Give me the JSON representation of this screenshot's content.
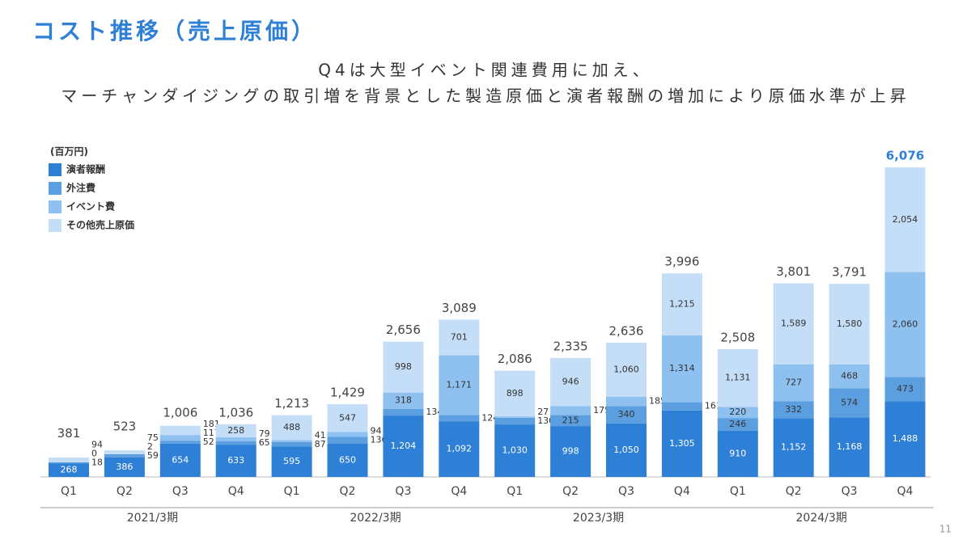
{
  "header": {
    "title": "コスト推移（売上原価）",
    "subtitle_lines": [
      "Q4は大型イベント関連費用に加え、",
      "マーチャンダイジングの取引増を背景とした製造原価と演者報酬の増加により原価水準が上昇"
    ]
  },
  "chart_data": {
    "type": "stacked-bar",
    "unit_label": "(百万円)",
    "categories": [
      "Q1",
      "Q2",
      "Q3",
      "Q4",
      "Q1",
      "Q2",
      "Q3",
      "Q4",
      "Q1",
      "Q2",
      "Q3",
      "Q4",
      "Q1",
      "Q2",
      "Q3",
      "Q4"
    ],
    "groups": [
      "2021/3期",
      "2022/3期",
      "2023/3期",
      "2024/3期"
    ],
    "series": [
      {
        "name": "演者報酬",
        "color": "#2e7fd6",
        "values": [
          268,
          386,
          654,
          633,
          595,
          650,
          1204,
          1092,
          1030,
          998,
          1050,
          1305,
          910,
          1152,
          1168,
          1488
        ],
        "value_labels": [
          "268",
          "386",
          "654",
          "633",
          "595",
          "650",
          "1,204",
          "1,092",
          "1,030",
          "998",
          "1,050",
          "1,305",
          "910",
          "1,152",
          "1,168",
          "1,488"
        ]
      },
      {
        "name": "外注費",
        "color": "#5b9fe0",
        "values": [
          18,
          59,
          52,
          65,
          87,
          136,
          134,
          124,
          130,
          215,
          340,
          161,
          246,
          332,
          574,
          473
        ]
      },
      {
        "name": "イベント費",
        "color": "#8fc1f0",
        "values": [
          0,
          2,
          117,
          79,
          41,
          94,
          318,
          1171,
          27,
          175,
          185,
          1314,
          220,
          727,
          468,
          2060
        ],
        "value_labels": [
          "0",
          "2",
          "117",
          "79",
          "41",
          "94",
          "318",
          "1,171",
          "27",
          "175",
          "185",
          "1,314",
          "220",
          "727",
          "468",
          "2,060"
        ]
      },
      {
        "name": "その他売上原価",
        "color": "#c5def7",
        "values": [
          94,
          75,
          181,
          258,
          488,
          547,
          998,
          701,
          898,
          946,
          1060,
          1215,
          1131,
          1589,
          1580,
          2054
        ],
        "value_labels": [
          "94",
          "75",
          "181",
          "258",
          "488",
          "547",
          "998",
          "701",
          "898",
          "946",
          "1,060",
          "1,215",
          "1,131",
          "1,589",
          "1,580",
          "2,054"
        ]
      }
    ],
    "totals": [
      381,
      523,
      1006,
      1036,
      1213,
      1429,
      2656,
      3089,
      2086,
      2335,
      2636,
      3996,
      2508,
      3801,
      3791,
      6076
    ],
    "total_labels": [
      "381",
      "523",
      "1,006",
      "1,036",
      "1,213",
      "1,429",
      "2,656",
      "3,089",
      "2,086",
      "2,335",
      "2,636",
      "3,996",
      "2,508",
      "3,801",
      "3,791",
      "6,076"
    ]
  },
  "footer": {
    "page_number": "11"
  }
}
